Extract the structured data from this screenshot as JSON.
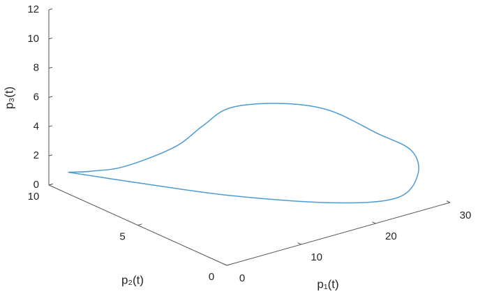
{
  "chart_data": {
    "type": "line3d",
    "xlabel": "p₁(t)",
    "ylabel": "p₂(t)",
    "zlabel": "p₃(t)",
    "xlim": [
      0,
      30
    ],
    "ylim": [
      0,
      10
    ],
    "zlim": [
      0,
      12
    ],
    "xticks": [
      0,
      10,
      20,
      30
    ],
    "yticks": [
      0,
      5,
      10
    ],
    "zticks": [
      0,
      2,
      4,
      6,
      8,
      10,
      12
    ],
    "color": "#4d9bd3",
    "x": [
      0.2,
      2.5,
      5.5,
      8.5,
      9.9,
      11.2,
      14.2,
      18.4,
      23.0,
      26.7,
      27.1,
      25.2,
      19.1,
      11.8,
      6.6,
      2.5,
      0.2
    ],
    "y": [
      9.0,
      8.7,
      8.0,
      6.5,
      5.5,
      4.5,
      3.0,
      2.0,
      1.2,
      0.8,
      0.6,
      0.95,
      1.9,
      4.7,
      7.6,
      8.7,
      9.0
    ],
    "z": [
      1.4,
      1.3,
      1.6,
      3.3,
      5.1,
      6.7,
      7.4,
      6.9,
      5.1,
      3.6,
      2.0,
      0.5,
      0.5,
      0.5,
      0.5,
      1.0,
      1.4
    ]
  }
}
